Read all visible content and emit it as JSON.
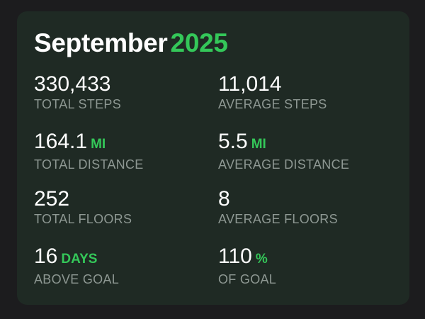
{
  "header": {
    "month": "September",
    "year": "2025"
  },
  "colors": {
    "accent": "#34c759",
    "card": "#1f2a24",
    "background": "#1c1c1e",
    "label": "#8e9893"
  },
  "stats": [
    {
      "value": "330,433",
      "unit": "",
      "label": "TOTAL STEPS"
    },
    {
      "value": "11,014",
      "unit": "",
      "label": "AVERAGE STEPS"
    },
    {
      "value": "164.1",
      "unit": "MI",
      "label": "TOTAL DISTANCE"
    },
    {
      "value": "5.5",
      "unit": "MI",
      "label": "AVERAGE DISTANCE"
    },
    {
      "value": "252",
      "unit": "",
      "label": "TOTAL FLOORS"
    },
    {
      "value": "8",
      "unit": "",
      "label": "AVERAGE FLOORS"
    },
    {
      "value": "16",
      "unit": "DAYS",
      "label": "ABOVE GOAL"
    },
    {
      "value": "110",
      "unit": "%",
      "label": "OF GOAL"
    }
  ]
}
